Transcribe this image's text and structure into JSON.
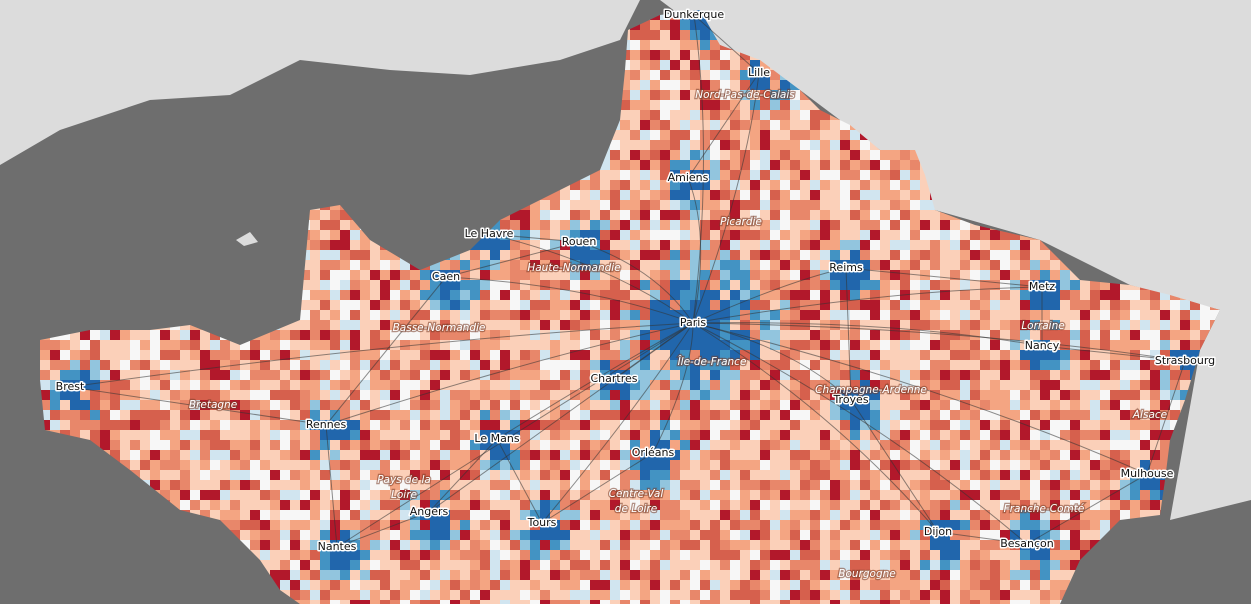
{
  "cities": [
    "Dunkerque",
    "Lille",
    "Amiens",
    "Le Havre",
    "Rouen",
    "Caen",
    "Reims",
    "Metz",
    "Paris",
    "Nancy",
    "Strasbourg",
    "Brest",
    "Chartres",
    "Troyes",
    "Rennes",
    "Le Mans",
    "Orléans",
    "Mulhouse",
    "Angers",
    "Tours",
    "Dijon",
    "Besançon",
    "Nantes"
  ],
  "regions": [
    [
      "Nord-Pas-de-Calais"
    ],
    [
      "Picardie"
    ],
    [
      "Haute-Normandie"
    ],
    [
      "Basse-Normandie"
    ],
    [
      "Île-de-France"
    ],
    [
      "Champagne-Ardenne"
    ],
    [
      "Lorraine"
    ],
    [
      "Bretagne"
    ],
    [
      "Alsace"
    ],
    [
      "Pays de la",
      "Loire"
    ],
    [
      "Centre-Val",
      "de Loire"
    ],
    [
      "Franche-Comté"
    ],
    [
      "Bourgogne"
    ]
  ]
}
